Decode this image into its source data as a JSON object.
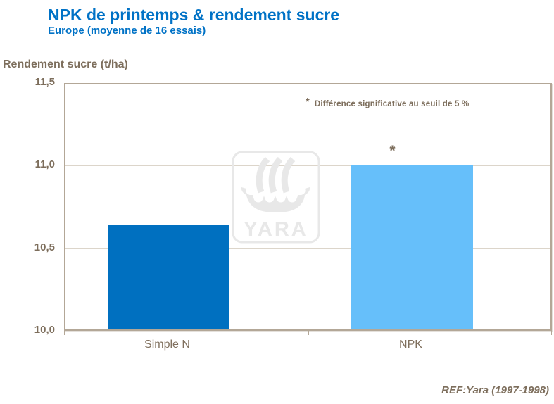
{
  "header": {
    "title": "NPK de printemps & rendement sucre",
    "subtitle": "Europe (moyenne de 16 essais)"
  },
  "chart_data": {
    "type": "bar",
    "title": "NPK de printemps & rendement sucre",
    "subtitle": "Europe (moyenne de 16 essais)",
    "ylabel": "Rendement sucre (t/ha)",
    "xlabel": "",
    "categories": [
      "Simple N",
      "NPK"
    ],
    "values": [
      10.64,
      11.0
    ],
    "significant": [
      false,
      true
    ],
    "significance_marker": "*",
    "ylim": [
      10.0,
      11.5
    ],
    "yticks": [
      10.0,
      10.5,
      11.0,
      11.5
    ],
    "ytick_labels": [
      "10,0",
      "10,5",
      "11,0",
      "11,5"
    ],
    "bar_colors": [
      "#0070C0",
      "#66BFFA"
    ],
    "grid": true,
    "legend": false,
    "annotation": "* Différence significative au seuil de 5 %",
    "source": "REF:Yara (1997-1998)"
  },
  "annotation": {
    "marker": "*",
    "text": "Différence significative au seuil de 5 %"
  },
  "footer": {
    "ref": "REF:Yara (1997-1998)"
  },
  "watermark": {
    "name": "yara-logo",
    "text": "YARA",
    "color": "#E8E8E8"
  },
  "colors": {
    "title_blue": "#0072C6",
    "bar_dark_blue": "#0070C0",
    "bar_light_blue": "#66BFFA",
    "axis_border": "#B3A797",
    "text_brown": "#7D6E5C",
    "gridline": "#DCD5CA"
  }
}
